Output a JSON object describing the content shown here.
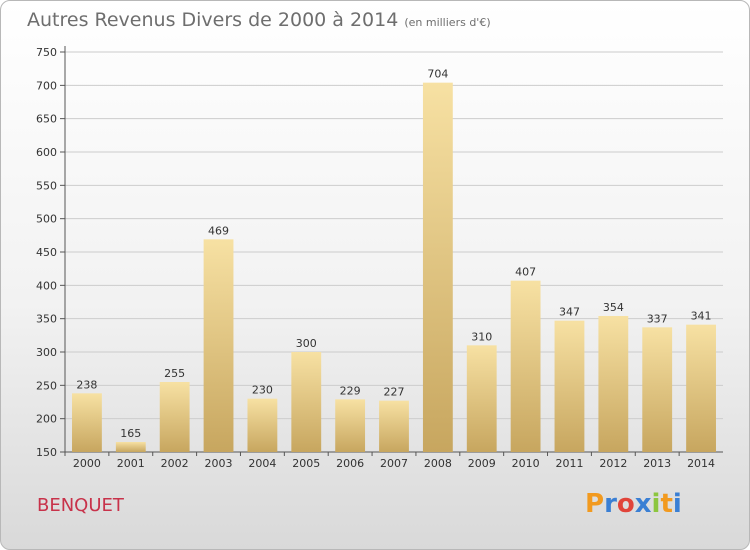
{
  "title": "Autres Revenus Divers de 2000 à 2014",
  "subtitle": "(en milliers d'€)",
  "place": "BENQUET",
  "logo": {
    "letters": [
      "P",
      "r",
      "o",
      "x",
      "i",
      "t",
      "i"
    ],
    "colors": [
      "#f29a1f",
      "#3a7fd4",
      "#e1443a",
      "#3a7fd4",
      "#8cc63f",
      "#f29a1f",
      "#3a7fd4"
    ]
  },
  "colors": {
    "bar_top": "#f7e1a3",
    "bar_bottom": "#c7a65f",
    "grid": "#cccccc",
    "axis": "#555555"
  },
  "chart_data": {
    "type": "bar",
    "categories": [
      "2000",
      "2001",
      "2002",
      "2003",
      "2004",
      "2005",
      "2006",
      "2007",
      "2008",
      "2009",
      "2010",
      "2011",
      "2012",
      "2013",
      "2014"
    ],
    "values": [
      238,
      165,
      255,
      469,
      230,
      300,
      229,
      227,
      704,
      310,
      407,
      347,
      354,
      337,
      341
    ],
    "ylim": [
      150,
      750
    ],
    "yticks": [
      150,
      200,
      250,
      300,
      350,
      400,
      450,
      500,
      550,
      600,
      650,
      700,
      750
    ],
    "grid": true
  }
}
